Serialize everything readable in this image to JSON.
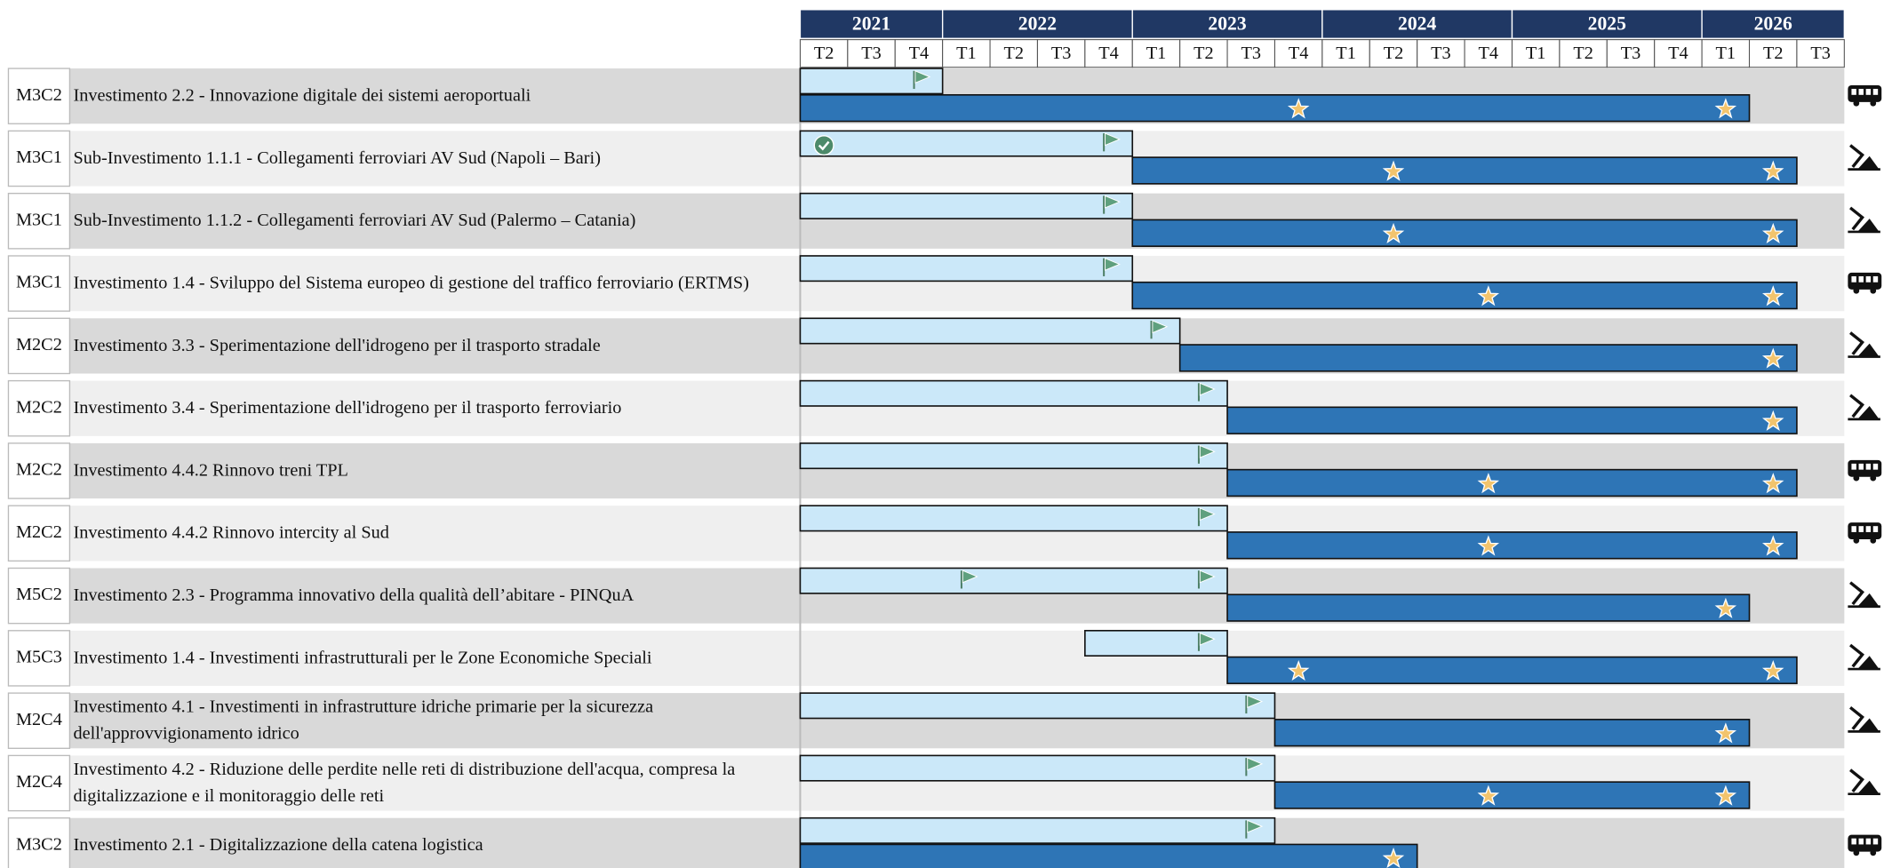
{
  "chart_data": {
    "type": "gantt",
    "years": [
      "2021",
      "2022",
      "2023",
      "2024",
      "2025",
      "2026"
    ],
    "quarters": [
      "T2",
      "T3",
      "T4",
      "T1",
      "T2",
      "T3",
      "T4",
      "T1",
      "T2",
      "T3",
      "T4",
      "T1",
      "T2",
      "T3",
      "T4",
      "T1",
      "T2",
      "T3",
      "T4",
      "T1",
      "T2",
      "T3"
    ],
    "plan_color": "#cbe8f9",
    "exec_color": "#2e75b6",
    "rows": [
      {
        "code": "M3C2",
        "label": "Investimento 2.2 - Innovazione digitale dei sistemi aeroportuali",
        "icon": "bus",
        "plan": {
          "start": 0,
          "end": 3,
          "flags": [
            2
          ],
          "checks": []
        },
        "exec": {
          "start": 0,
          "end": 20,
          "stars": [
            10,
            19
          ]
        }
      },
      {
        "code": "M3C1",
        "label": "Sub-Investimento 1.1.1 - Collegamenti ferroviari AV Sud (Napoli – Bari)",
        "icon": "works",
        "plan": {
          "start": 0,
          "end": 7,
          "flags": [
            6
          ],
          "checks": [
            0
          ]
        },
        "exec": {
          "start": 7,
          "end": 21,
          "stars": [
            12,
            20
          ]
        }
      },
      {
        "code": "M3C1",
        "label": "Sub-Investimento 1.1.2 - Collegamenti ferroviari AV Sud (Palermo – Catania)",
        "icon": "works",
        "plan": {
          "start": 0,
          "end": 7,
          "flags": [
            6
          ],
          "checks": []
        },
        "exec": {
          "start": 7,
          "end": 21,
          "stars": [
            12,
            20
          ]
        }
      },
      {
        "code": "M3C1",
        "label": "Investimento 1.4 - Sviluppo del Sistema europeo di gestione del traffico ferroviario (ERTMS)",
        "icon": "bus",
        "plan": {
          "start": 0,
          "end": 7,
          "flags": [
            6
          ],
          "checks": []
        },
        "exec": {
          "start": 7,
          "end": 21,
          "stars": [
            14,
            20
          ]
        }
      },
      {
        "code": "M2C2",
        "label": "Investimento 3.3 - Sperimentazione dell'idrogeno per il trasporto stradale",
        "icon": "works",
        "plan": {
          "start": 0,
          "end": 8,
          "flags": [
            7
          ],
          "checks": []
        },
        "exec": {
          "start": 8,
          "end": 21,
          "stars": [
            20
          ]
        }
      },
      {
        "code": "M2C2",
        "label": "Investimento 3.4 - Sperimentazione dell'idrogeno per il trasporto ferroviario",
        "icon": "works",
        "plan": {
          "start": 0,
          "end": 9,
          "flags": [
            8
          ],
          "checks": []
        },
        "exec": {
          "start": 9,
          "end": 21,
          "stars": [
            20
          ]
        }
      },
      {
        "code": "M2C2",
        "label": "Investimento 4.4.2 Rinnovo treni TPL",
        "icon": "bus",
        "plan": {
          "start": 0,
          "end": 9,
          "flags": [
            8
          ],
          "checks": []
        },
        "exec": {
          "start": 9,
          "end": 21,
          "stars": [
            14,
            20
          ]
        }
      },
      {
        "code": "M2C2",
        "label": "Investimento 4.4.2 Rinnovo intercity al Sud",
        "icon": "bus",
        "plan": {
          "start": 0,
          "end": 9,
          "flags": [
            8
          ],
          "checks": []
        },
        "exec": {
          "start": 9,
          "end": 21,
          "stars": [
            14,
            20
          ]
        }
      },
      {
        "code": "M5C2",
        "label": "Investimento 2.3 - Programma innovativo della qualità dell’abitare - PINQuA",
        "icon": "works",
        "plan": {
          "start": 0,
          "end": 9,
          "flags": [
            3,
            8
          ],
          "checks": []
        },
        "exec": {
          "start": 9,
          "end": 20,
          "stars": [
            19
          ]
        }
      },
      {
        "code": "M5C3",
        "label": "Investimento 1.4 - Investimenti infrastrutturali per le Zone Economiche Speciali",
        "icon": "works",
        "plan": {
          "start": 6,
          "end": 9,
          "flags": [
            8
          ],
          "checks": []
        },
        "exec": {
          "start": 9,
          "end": 21,
          "stars": [
            10,
            20
          ]
        }
      },
      {
        "code": "M2C4",
        "label": "Investimento 4.1 - Investimenti in infrastrutture idriche primarie per la sicurezza dell'approvvigionamento idrico",
        "icon": "works",
        "plan": {
          "start": 0,
          "end": 10,
          "flags": [
            9
          ],
          "checks": []
        },
        "exec": {
          "start": 10,
          "end": 20,
          "stars": [
            19
          ]
        }
      },
      {
        "code": "M2C4",
        "label": "Investimento 4.2 - Riduzione delle perdite nelle reti di distribuzione dell'acqua, compresa la digitalizzazione e il monitoraggio delle reti",
        "icon": "works",
        "plan": {
          "start": 0,
          "end": 10,
          "flags": [
            9
          ],
          "checks": []
        },
        "exec": {
          "start": 10,
          "end": 20,
          "stars": [
            14,
            19
          ]
        }
      },
      {
        "code": "M3C2",
        "label": "Investimento 2.1 - Digitalizzazione della catena logistica",
        "icon": "bus",
        "plan": {
          "start": 0,
          "end": 10,
          "flags": [
            9
          ],
          "checks": []
        },
        "exec": {
          "start": 0,
          "end": 13,
          "stars": [
            12
          ]
        }
      }
    ]
  }
}
